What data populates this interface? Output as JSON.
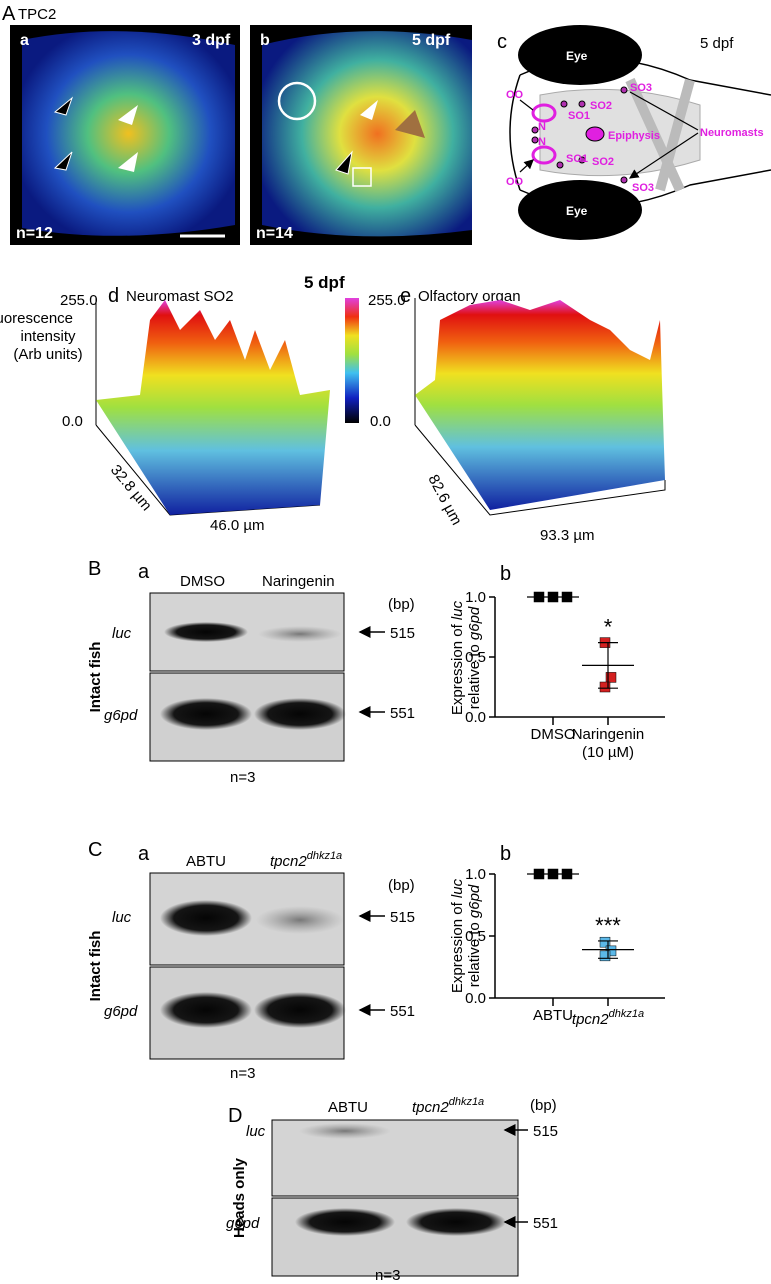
{
  "panel_A": {
    "label": "A",
    "title": "TPC2",
    "a": {
      "label": "a",
      "stage": "3 dpf",
      "n": "n=12"
    },
    "b": {
      "label": "b",
      "stage": "5 dpf",
      "n": "n=14"
    },
    "c": {
      "label": "c",
      "stage": "5 dpf",
      "eye_top": "Eye",
      "eye_bottom": "Eye",
      "oo_top": "OO",
      "oo_bottom": "OO",
      "n_top": "N",
      "n_bottom": "N",
      "so1_top": "SO1",
      "so1_bottom": "SO1",
      "so2_top": "SO2",
      "so2_bottom": "SO2",
      "so3_top": "SO3",
      "so3_bottom": "SO3",
      "epiphysis": "Epiphysis",
      "neuromasts": "Neuromasts"
    },
    "d": {
      "label": "d",
      "title": "Neuromast SO2",
      "zmax": "255.0",
      "zmin": "0.0",
      "depth": "32.8 µm",
      "width": "46.0 µm"
    },
    "colorbar_title": "5 dpf",
    "y_label": [
      "Fluorescence",
      "intensity",
      "(Arb units)"
    ],
    "e": {
      "label": "e",
      "title": "Olfactory organ",
      "zmax": "255.0",
      "zmin": "0.0",
      "depth": "82.6 µm",
      "width": "93.3 µm"
    }
  },
  "panel_B": {
    "label": "B",
    "gel": {
      "label": "a",
      "lane1": "DMSO",
      "lane2": "Naringenin",
      "bp": "(bp)",
      "row1": "luc",
      "row1_size": "515",
      "row2": "g6pd",
      "row2_size": "551",
      "side": "Intact fish",
      "n": "n=3"
    },
    "plot": {
      "label": "b",
      "y_label_1": [
        "Expression of ",
        "luc"
      ],
      "y_label_2": [
        "relative to ",
        "g6pd"
      ],
      "ylim": [
        0,
        1
      ],
      "yticks": [
        {
          "value": 0,
          "label": "0.0"
        },
        {
          "value": 0.5,
          "label": "0.5"
        },
        {
          "value": 1,
          "label": "1.0"
        }
      ],
      "groups": [
        {
          "name": "DMSO",
          "color": "#000000",
          "values": [
            1,
            1,
            1
          ],
          "mean": 1
        },
        {
          "name": "Naringenin",
          "sublabel": "(10 µM)",
          "color": "#d42020",
          "values": [
            0.62,
            0.33,
            0.25
          ],
          "mean": 0.43,
          "error": 0.19
        }
      ],
      "significance": "*"
    }
  },
  "panel_C": {
    "label": "C",
    "gel": {
      "label": "a",
      "lane1": "ABTU",
      "lane2": [
        "tpcn2",
        "dhkz1a"
      ],
      "bp": "(bp)",
      "row1": "luc",
      "row1_size": "515",
      "row2": "g6pd",
      "row2_size": "551",
      "side": "Intact fish",
      "n": "n=3"
    },
    "plot": {
      "label": "b",
      "y_label_1": [
        "Expression of ",
        "luc"
      ],
      "y_label_2": [
        "relative to ",
        "g6pd"
      ],
      "ylim": [
        0,
        1
      ],
      "yticks": [
        {
          "value": 0,
          "label": "0.0"
        },
        {
          "value": 0.5,
          "label": "0.5"
        },
        {
          "value": 1,
          "label": "1.0"
        }
      ],
      "groups": [
        {
          "name": "ABTU",
          "color": "#000000",
          "values": [
            1,
            1,
            1
          ],
          "mean": 1
        },
        {
          "name": [
            "tpcn2",
            "dhkz1a"
          ],
          "color": "#5bb8e8",
          "values": [
            0.45,
            0.38,
            0.34
          ],
          "mean": 0.39,
          "error": 0.07
        }
      ],
      "significance": "***"
    }
  },
  "panel_D": {
    "label": "D",
    "gel": {
      "lane1": "ABTU",
      "lane2": [
        "tpcn2",
        "dhkz1a"
      ],
      "bp": "(bp)",
      "row1": "luc",
      "row1_size": "515",
      "row2": "g6pd",
      "row2_size": "551",
      "side": "Heads only",
      "n": "n=3"
    }
  }
}
